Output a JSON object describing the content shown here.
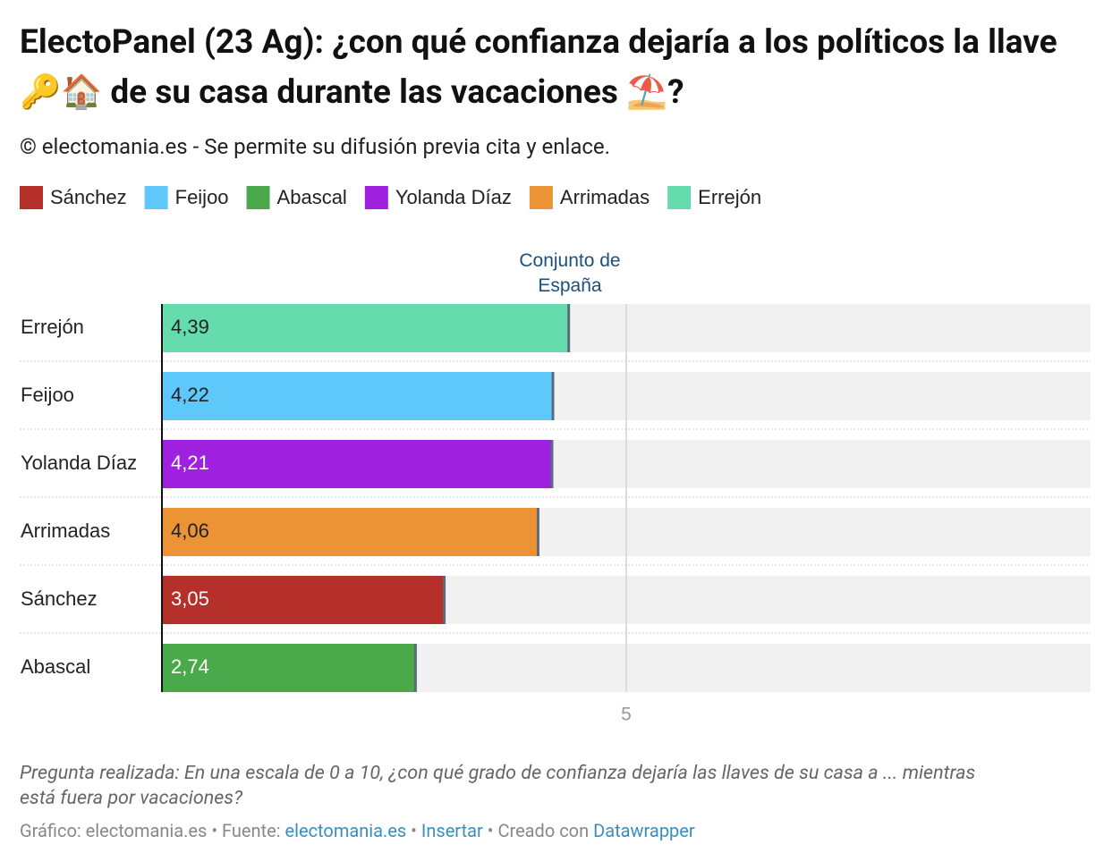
{
  "chart_data": {
    "type": "bar",
    "title": "ElectoPanel (23 Ag): ¿con qué confianza dejaría a los políticos la llave 🔑🏠 de su casa durante las vacaciones ⛱️?",
    "subtitle": "© electomania.es - Se permite su difusión previa cita y enlace.",
    "legend": [
      {
        "name": "Sánchez",
        "color": "#b5302a"
      },
      {
        "name": "Feijoo",
        "color": "#5ec8fb"
      },
      {
        "name": "Abascal",
        "color": "#4aa94a"
      },
      {
        "name": "Yolanda Díaz",
        "color": "#a020df"
      },
      {
        "name": "Arrimadas",
        "color": "#ec9336"
      },
      {
        "name": "Errejón",
        "color": "#66dbad"
      }
    ],
    "column_header": "Conjunto de España",
    "categories": [
      "Errejón",
      "Feijoo",
      "Yolanda Díaz",
      "Arrimadas",
      "Sánchez",
      "Abascal"
    ],
    "values": [
      4.39,
      4.22,
      4.21,
      4.06,
      3.05,
      2.74
    ],
    "value_labels": [
      "4,39",
      "4,22",
      "4,21",
      "4,06",
      "3,05",
      "2,74"
    ],
    "xlim": [
      0,
      10
    ],
    "xticks": [
      5
    ],
    "grid": true,
    "notes": "Pregunta realizada: En una escala de 0 a 10, ¿con qué grado de confianza dejaría las llaves de su casa a ... mientras está fuera por vacaciones?",
    "footer": {
      "chart_by": "Gráfico: electomania.es",
      "source_label": "Fuente:",
      "source_link": "electomania.es",
      "embed": "Insertar",
      "made_with": "Creado con",
      "tool": "Datawrapper"
    }
  }
}
